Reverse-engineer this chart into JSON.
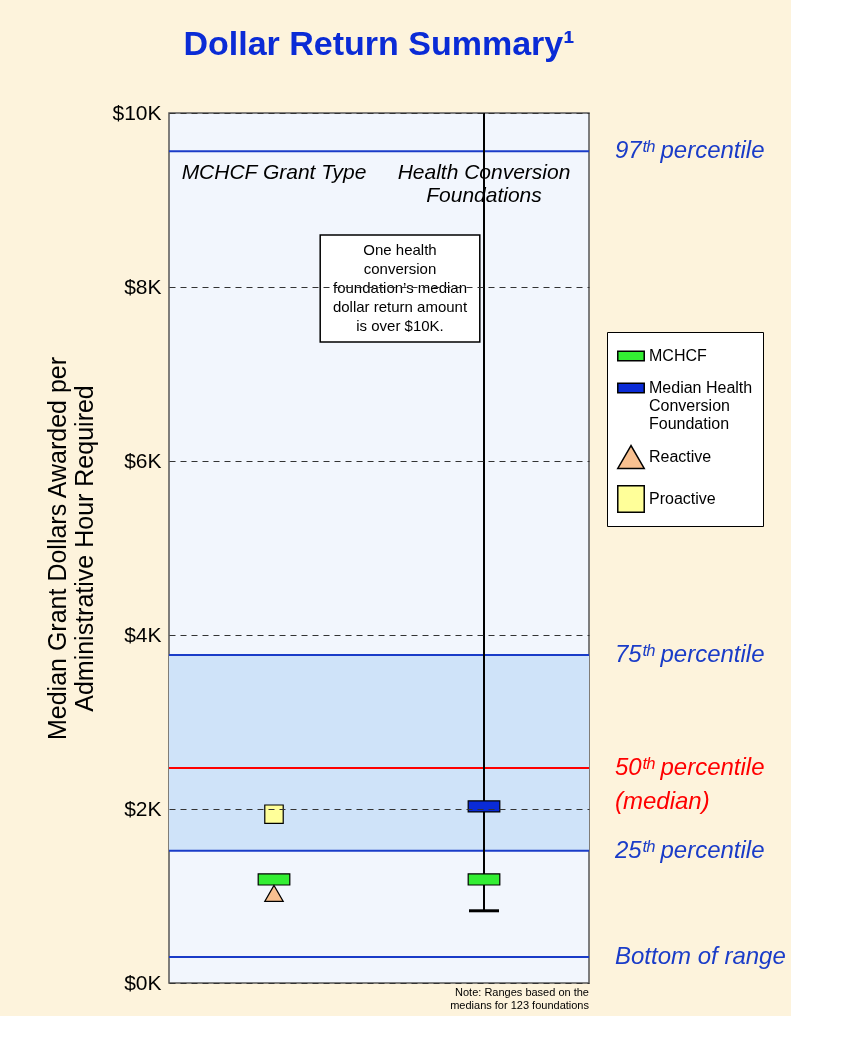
{
  "chart_data": {
    "type": "scatter",
    "title": "Dollar Return Summary¹",
    "ylabel": "Median Grant Dollars Awarded per Administrative Hour Required",
    "categories": [
      "MCHCF Grant Type",
      "Health Conversion Foundations"
    ],
    "series": [
      {
        "name": "MCHCF",
        "color": "#33ee33",
        "values": [
          1190,
          1190
        ]
      },
      {
        "name": "Median Health Conversion Foundation",
        "color": "#0a2bd6",
        "values": [
          null,
          2030
        ],
        "errors": [
          null,
          [
            830,
            10000
          ]
        ]
      },
      {
        "name": "Reactive",
        "color": "#f8c090",
        "marker": "triangle",
        "values": [
          1030,
          null
        ]
      },
      {
        "name": "Proactive",
        "color": "#ffff99",
        "marker": "square",
        "values": [
          1940,
          null
        ]
      }
    ],
    "ylim": [
      0,
      10000
    ],
    "yticks": [
      {
        "value": 0,
        "label": "$0K"
      },
      {
        "value": 2000,
        "label": "$2K"
      },
      {
        "value": 4000,
        "label": "$4K"
      },
      {
        "value": 6000,
        "label": "$6K"
      },
      {
        "value": 8000,
        "label": "$8K"
      },
      {
        "value": 10000,
        "label": "$10K"
      }
    ],
    "grid": "y",
    "legend": "right",
    "ref_lines": [
      {
        "axis": "y",
        "value": 9560,
        "label": "97ᵗʰ percentile",
        "color": "#1a3cc8"
      },
      {
        "axis": "y",
        "value": 3770,
        "label": "75ᵗʰ percentile",
        "color": "#1a3cc8"
      },
      {
        "axis": "y",
        "value": 2470,
        "label": "50ᵗʰ percentile (median)",
        "color": "#ff0000"
      },
      {
        "axis": "y",
        "value": 1520,
        "label": "25ᵗʰ percentile",
        "color": "#1a3cc8"
      },
      {
        "axis": "y",
        "value": 300,
        "label": "Bottom of range",
        "color": "#1a3cc8"
      }
    ],
    "bands": [
      {
        "axis": "y",
        "from": 1520,
        "to": 3770,
        "color": "#cfe3f9"
      }
    ],
    "annotations": [
      "One health conversion foundation’s median dollar return amount is over $10K.",
      "Note: Ranges based on the medians for 123 foundations"
    ]
  }
}
